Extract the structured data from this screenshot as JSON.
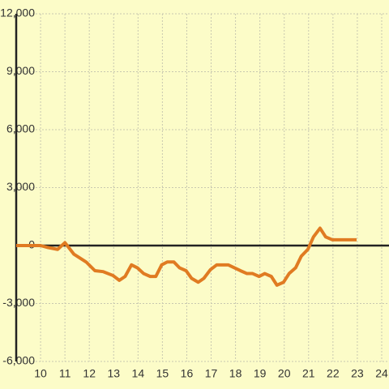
{
  "chart_data": {
    "type": "line",
    "color": "#e07b22",
    "grid": true,
    "xlim": [
      9,
      24.3
    ],
    "ylim": [
      -6000,
      12000
    ],
    "xticks": [
      10,
      11,
      12,
      13,
      14,
      15,
      16,
      17,
      18,
      19,
      20,
      21,
      22,
      23,
      24
    ],
    "yticks": [
      {
        "value": -6000,
        "label": "-6,000"
      },
      {
        "value": -3000,
        "label": "-3,000"
      },
      0,
      {
        "value": 3000,
        "label": "3,000"
      },
      {
        "value": 6000,
        "label": "6,000"
      },
      {
        "value": 9000,
        "label": "9,000"
      },
      {
        "value": 12000,
        "label": "12,000"
      }
    ],
    "x": [
      9,
      10,
      10.3,
      10.7,
      11,
      11.37,
      11.87,
      12.23,
      12.57,
      12.97,
      13.23,
      13.47,
      13.73,
      13.97,
      14.23,
      14.5,
      14.73,
      14.97,
      15.2,
      15.47,
      15.7,
      15.97,
      16.2,
      16.47,
      16.7,
      16.97,
      17.23,
      17.7,
      18.2,
      18.47,
      18.7,
      18.97,
      19.2,
      19.47,
      19.7,
      19.97,
      20.2,
      20.47,
      20.7,
      20.97,
      21.2,
      21.47,
      21.7,
      21.97,
      22.97
    ],
    "values": [
      0,
      0,
      -100,
      -200,
      150,
      -450,
      -850,
      -1300,
      -1350,
      -1550,
      -1800,
      -1600,
      -1000,
      -1150,
      -1450,
      -1600,
      -1600,
      -1000,
      -850,
      -850,
      -1150,
      -1300,
      -1700,
      -1900,
      -1700,
      -1250,
      -1000,
      -1000,
      -1300,
      -1450,
      -1450,
      -1600,
      -1450,
      -1600,
      -2050,
      -1900,
      -1450,
      -1150,
      -550,
      -200,
      450,
      900,
      450,
      300,
      300
    ]
  }
}
